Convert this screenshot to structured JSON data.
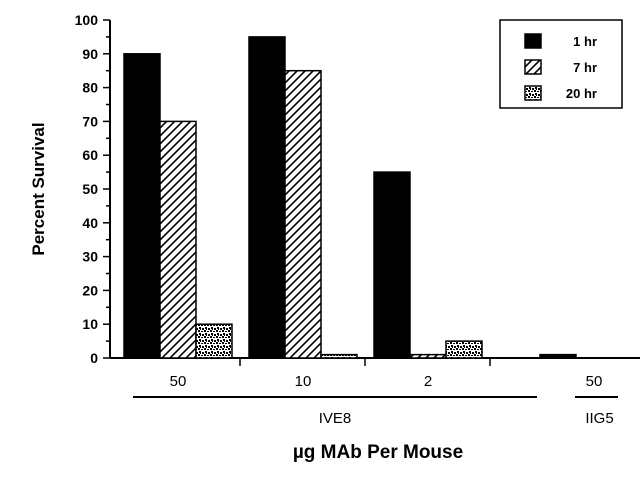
{
  "chart_data": {
    "type": "bar",
    "ylabel": "Percent Survival",
    "xlabel": "µg MAb Per Mouse",
    "ylim": [
      0,
      100
    ],
    "yticks": [
      0,
      10,
      20,
      30,
      40,
      50,
      60,
      70,
      80,
      90,
      100
    ],
    "categories": [
      "50",
      "10",
      "2",
      "50"
    ],
    "groups": [
      {
        "label": "IVE8",
        "categories": [
          "50",
          "10",
          "2"
        ]
      },
      {
        "label": "IIG5",
        "categories": [
          "50"
        ]
      }
    ],
    "series": [
      {
        "name": "1 hr",
        "values": [
          90,
          95,
          55,
          1
        ],
        "pattern": "solid",
        "color": "#000000"
      },
      {
        "name": "7 hr",
        "values": [
          70,
          85,
          1,
          null
        ],
        "pattern": "hatch",
        "color": "#000000"
      },
      {
        "name": "20 hr",
        "values": [
          10,
          1,
          5,
          null
        ],
        "pattern": "stipple",
        "color": "#000000"
      }
    ],
    "legend_position": "top-right",
    "grid": false
  }
}
